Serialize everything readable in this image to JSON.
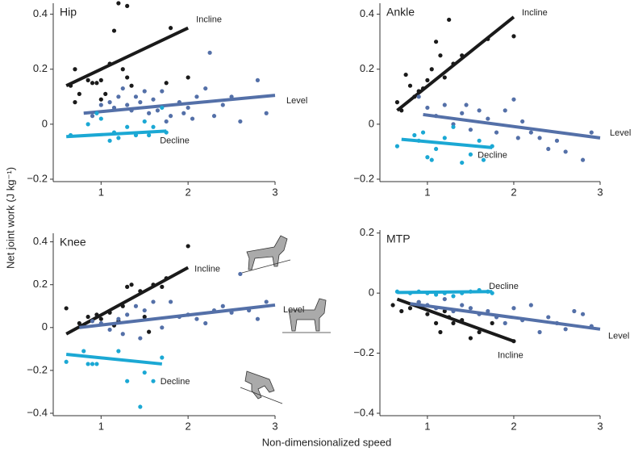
{
  "xlabel": "Non-dimensionalized speed",
  "ylabel": "Net joint work (J kg⁻¹)",
  "chart_data": [
    {
      "type": "scatter",
      "title": "Hip",
      "xlim": [
        0.45,
        3.0
      ],
      "ylim": [
        -0.2,
        0.44
      ],
      "xticks": [
        1,
        2,
        3
      ],
      "yticks": [
        0.4,
        0.2,
        0,
        {
          "value": -0.2,
          "label": "−0.2"
        }
      ],
      "series": [
        {
          "name": "Incline",
          "color": "#1a1a1a",
          "x": [
            0.65,
            0.7,
            0.85,
            0.9,
            0.95,
            1.0,
            0.75,
            0.7,
            1.05,
            1.1,
            1.15,
            1.2,
            1.3,
            1.25,
            1.35,
            1.3,
            1.8,
            2.0,
            1.75,
            1.0
          ],
          "y": [
            0.14,
            0.2,
            0.16,
            0.15,
            0.15,
            0.16,
            0.11,
            0.08,
            0.11,
            0.22,
            0.34,
            0.44,
            0.43,
            0.2,
            0.14,
            0.17,
            0.35,
            0.17,
            0.15,
            0.09
          ],
          "fit": {
            "x": [
              0.6,
              2.0
            ],
            "y": [
              0.14,
              0.35
            ]
          }
        },
        {
          "name": "Level",
          "color": "#5470a8",
          "x": [
            0.9,
            1.0,
            1.1,
            1.15,
            1.2,
            1.25,
            1.3,
            1.35,
            1.4,
            1.45,
            1.5,
            1.55,
            1.6,
            1.65,
            1.7,
            1.8,
            1.9,
            2.0,
            2.1,
            2.2,
            2.25,
            2.3,
            2.4,
            2.5,
            2.6,
            2.8,
            2.9,
            1.95,
            2.05,
            1.75
          ],
          "y": [
            0.03,
            0.07,
            0.08,
            0.06,
            0.1,
            0.13,
            0.07,
            0.05,
            0.1,
            0.08,
            0.12,
            0.04,
            0.09,
            0.05,
            0.12,
            0.03,
            0.08,
            0.06,
            0.1,
            0.13,
            0.26,
            0.03,
            0.07,
            0.1,
            0.01,
            0.16,
            0.04,
            0.04,
            0.02,
            0.01
          ],
          "fit": {
            "x": [
              0.8,
              3.0
            ],
            "y": [
              0.04,
              0.105
            ]
          }
        },
        {
          "name": "Decline",
          "color": "#1ba8d4",
          "x": [
            0.65,
            0.85,
            0.95,
            1.0,
            1.1,
            1.15,
            1.2,
            1.3,
            1.4,
            1.5,
            1.6,
            1.7,
            1.75,
            1.55
          ],
          "y": [
            -0.04,
            0.0,
            0.04,
            0.02,
            -0.06,
            -0.03,
            -0.05,
            -0.01,
            -0.04,
            0.01,
            -0.01,
            0.06,
            -0.03,
            -0.04
          ],
          "fit": {
            "x": [
              0.6,
              1.75
            ],
            "y": [
              -0.045,
              -0.025
            ]
          }
        }
      ]
    },
    {
      "type": "scatter",
      "title": "Ankle",
      "xlim": [
        0.45,
        3.0
      ],
      "ylim": [
        -0.2,
        0.44
      ],
      "xticks": [
        1,
        2,
        3
      ],
      "yticks": [
        0.4,
        0.2,
        0,
        {
          "value": -0.2,
          "label": "−0.2"
        }
      ],
      "series": [
        {
          "name": "Incline",
          "color": "#1a1a1a",
          "x": [
            0.65,
            0.75,
            0.8,
            0.85,
            0.9,
            0.95,
            1.0,
            1.05,
            1.1,
            1.15,
            1.25,
            1.3,
            1.4,
            1.7,
            2.0,
            1.2,
            0.7
          ],
          "y": [
            0.08,
            0.18,
            0.14,
            0.1,
            0.12,
            0.13,
            0.16,
            0.2,
            0.3,
            0.25,
            0.38,
            0.22,
            0.25,
            0.31,
            0.32,
            0.17,
            0.05
          ],
          "fit": {
            "x": [
              0.65,
              2.0
            ],
            "y": [
              0.05,
              0.39
            ]
          }
        },
        {
          "name": "Level",
          "color": "#5470a8",
          "x": [
            0.9,
            1.0,
            1.1,
            1.2,
            1.3,
            1.4,
            1.5,
            1.6,
            1.7,
            1.8,
            1.9,
            2.0,
            2.05,
            2.1,
            2.2,
            2.3,
            2.4,
            2.5,
            2.6,
            2.8,
            2.9,
            1.45
          ],
          "y": [
            0.1,
            0.06,
            0.03,
            0.07,
            0.0,
            0.04,
            -0.02,
            0.05,
            0.02,
            -0.03,
            0.05,
            0.09,
            -0.05,
            0.01,
            -0.03,
            -0.05,
            -0.09,
            -0.06,
            -0.1,
            -0.13,
            -0.03,
            0.07
          ],
          "fit": {
            "x": [
              0.95,
              3.0
            ],
            "y": [
              0.035,
              -0.05
            ]
          }
        },
        {
          "name": "Decline",
          "color": "#1ba8d4",
          "x": [
            0.65,
            0.85,
            0.9,
            0.95,
            1.0,
            1.05,
            1.1,
            1.2,
            1.3,
            1.4,
            1.5,
            1.6,
            1.65,
            1.75
          ],
          "y": [
            -0.08,
            -0.04,
            -0.06,
            -0.03,
            -0.12,
            -0.13,
            -0.09,
            -0.05,
            -0.01,
            -0.14,
            -0.11,
            -0.06,
            -0.13,
            -0.08
          ],
          "fit": {
            "x": [
              0.7,
              1.75
            ],
            "y": [
              -0.055,
              -0.085
            ]
          }
        }
      ]
    },
    {
      "type": "scatter",
      "title": "Knee",
      "xlim": [
        0.45,
        3.0
      ],
      "ylim": [
        -0.4,
        0.44
      ],
      "xticks": [
        1,
        2,
        3
      ],
      "yticks": [
        0.4,
        0.2,
        0,
        {
          "value": -0.2,
          "label": "−0.2"
        },
        {
          "value": -0.4,
          "label": "−0.4"
        }
      ],
      "series": [
        {
          "name": "Incline",
          "color": "#1a1a1a",
          "x": [
            0.6,
            0.75,
            0.85,
            0.95,
            1.0,
            1.1,
            1.15,
            1.2,
            1.3,
            1.35,
            1.45,
            1.5,
            1.6,
            1.7,
            1.75,
            2.0,
            1.55,
            1.25
          ],
          "y": [
            0.09,
            0.02,
            0.05,
            0.06,
            0.04,
            0.07,
            0.01,
            0.03,
            0.19,
            0.2,
            0.17,
            0.05,
            0.2,
            0.19,
            0.23,
            0.38,
            -0.02,
            0.1
          ],
          "fit": {
            "x": [
              0.6,
              2.0
            ],
            "y": [
              -0.03,
              0.28
            ]
          }
        },
        {
          "name": "Level",
          "color": "#5470a8",
          "x": [
            0.9,
            1.0,
            1.1,
            1.2,
            1.3,
            1.4,
            1.5,
            1.6,
            1.7,
            1.8,
            1.9,
            2.0,
            2.1,
            2.2,
            2.3,
            2.4,
            2.5,
            2.6,
            2.7,
            2.8,
            2.9,
            1.45,
            1.25
          ],
          "y": [
            0.03,
            0.02,
            -0.01,
            0.04,
            0.06,
            0.1,
            0.08,
            0.12,
            0.0,
            0.12,
            0.05,
            0.06,
            0.04,
            0.02,
            0.08,
            0.1,
            0.07,
            0.25,
            0.08,
            0.04,
            0.12,
            -0.05,
            -0.03
          ],
          "fit": {
            "x": [
              0.75,
              3.0
            ],
            "y": [
              0.0,
              0.105
            ]
          }
        },
        {
          "name": "Decline",
          "color": "#1ba8d4",
          "x": [
            0.6,
            0.8,
            0.85,
            0.9,
            0.95,
            1.3,
            1.45,
            1.5,
            1.6,
            1.7,
            1.2
          ],
          "y": [
            -0.16,
            -0.11,
            -0.17,
            -0.17,
            -0.17,
            -0.25,
            -0.37,
            -0.21,
            -0.25,
            -0.14,
            -0.11
          ],
          "fit": {
            "x": [
              0.6,
              1.7
            ],
            "y": [
              -0.125,
              -0.17
            ]
          }
        }
      ]
    },
    {
      "type": "scatter",
      "title": "MTP",
      "xlim": [
        0.45,
        3.0
      ],
      "ylim": [
        -0.4,
        0.21
      ],
      "xticks": [
        1,
        2,
        3
      ],
      "yticks": [
        0.2,
        0,
        {
          "value": -0.2,
          "label": "−0.2"
        },
        {
          "value": -0.4,
          "label": "−0.4"
        }
      ],
      "series": [
        {
          "name": "Incline",
          "color": "#1a1a1a",
          "x": [
            0.6,
            0.7,
            0.8,
            0.9,
            1.0,
            1.1,
            1.15,
            1.2,
            1.3,
            1.4,
            1.5,
            1.6,
            1.75,
            2.0,
            1.25
          ],
          "y": [
            -0.04,
            -0.06,
            -0.05,
            -0.03,
            -0.07,
            -0.1,
            -0.13,
            -0.06,
            -0.1,
            -0.09,
            -0.15,
            -0.13,
            -0.1,
            -0.16,
            -0.08
          ],
          "fit": {
            "x": [
              0.65,
              2.0
            ],
            "y": [
              -0.02,
              -0.16
            ]
          }
        },
        {
          "name": "Level",
          "color": "#5470a8",
          "x": [
            0.9,
            1.0,
            1.1,
            1.2,
            1.3,
            1.4,
            1.5,
            1.6,
            1.7,
            1.8,
            1.9,
            2.0,
            2.1,
            2.2,
            2.3,
            2.4,
            2.5,
            2.6,
            2.8,
            2.9,
            2.7
          ],
          "y": [
            -0.03,
            -0.04,
            -0.05,
            -0.02,
            -0.06,
            -0.04,
            -0.05,
            -0.07,
            -0.06,
            -0.08,
            -0.1,
            -0.05,
            -0.09,
            -0.04,
            -0.13,
            -0.08,
            -0.1,
            -0.12,
            -0.07,
            -0.11,
            -0.06
          ],
          "fit": {
            "x": [
              0.8,
              3.0
            ],
            "y": [
              -0.035,
              -0.12
            ]
          }
        },
        {
          "name": "Decline",
          "color": "#1ba8d4",
          "x": [
            0.65,
            0.8,
            0.9,
            1.0,
            1.1,
            1.2,
            1.3,
            1.4,
            1.5,
            1.6,
            1.7,
            1.75
          ],
          "y": [
            0.005,
            0.0,
            0.005,
            0.0,
            -0.005,
            0.0,
            -0.01,
            0.0,
            0.005,
            0.01,
            0.005,
            0.0
          ],
          "fit": {
            "x": [
              0.65,
              1.75
            ],
            "y": [
              0.002,
              0.005
            ]
          }
        }
      ]
    }
  ]
}
